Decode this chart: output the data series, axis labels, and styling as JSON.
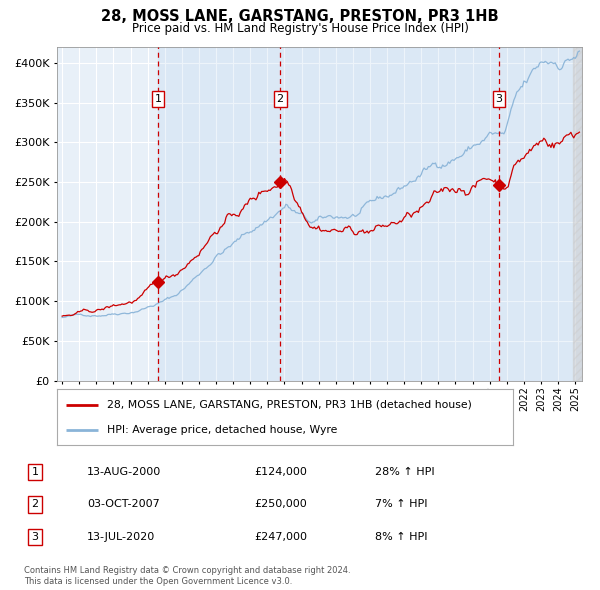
{
  "title": "28, MOSS LANE, GARSTANG, PRESTON, PR3 1HB",
  "subtitle": "Price paid vs. HM Land Registry's House Price Index (HPI)",
  "sale_dates_num": [
    2000.617,
    2007.751,
    2020.535
  ],
  "sale_prices": [
    124000,
    250000,
    247000
  ],
  "sale_labels": [
    "1",
    "2",
    "3"
  ],
  "sale_info": [
    {
      "label": "1",
      "date": "13-AUG-2000",
      "price": "£124,000",
      "hpi": "28% ↑ HPI"
    },
    {
      "label": "2",
      "date": "03-OCT-2007",
      "price": "£250,000",
      "hpi": "7% ↑ HPI"
    },
    {
      "label": "3",
      "date": "13-JUL-2020",
      "price": "£247,000",
      "hpi": "8% ↑ HPI"
    }
  ],
  "legend_property": "28, MOSS LANE, GARSTANG, PRESTON, PR3 1HB (detached house)",
  "legend_hpi": "HPI: Average price, detached house, Wyre",
  "footer": "Contains HM Land Registry data © Crown copyright and database right 2024.\nThis data is licensed under the Open Government Licence v3.0.",
  "property_color": "#cc0000",
  "hpi_color": "#8ab4d8",
  "plot_bg": "#e8f0f8",
  "grid_color": "#ffffff",
  "ylim": [
    0,
    420000
  ],
  "yticks": [
    0,
    50000,
    100000,
    150000,
    200000,
    250000,
    300000,
    350000,
    400000
  ],
  "xlim_start": 1994.7,
  "xlim_end": 2025.4
}
